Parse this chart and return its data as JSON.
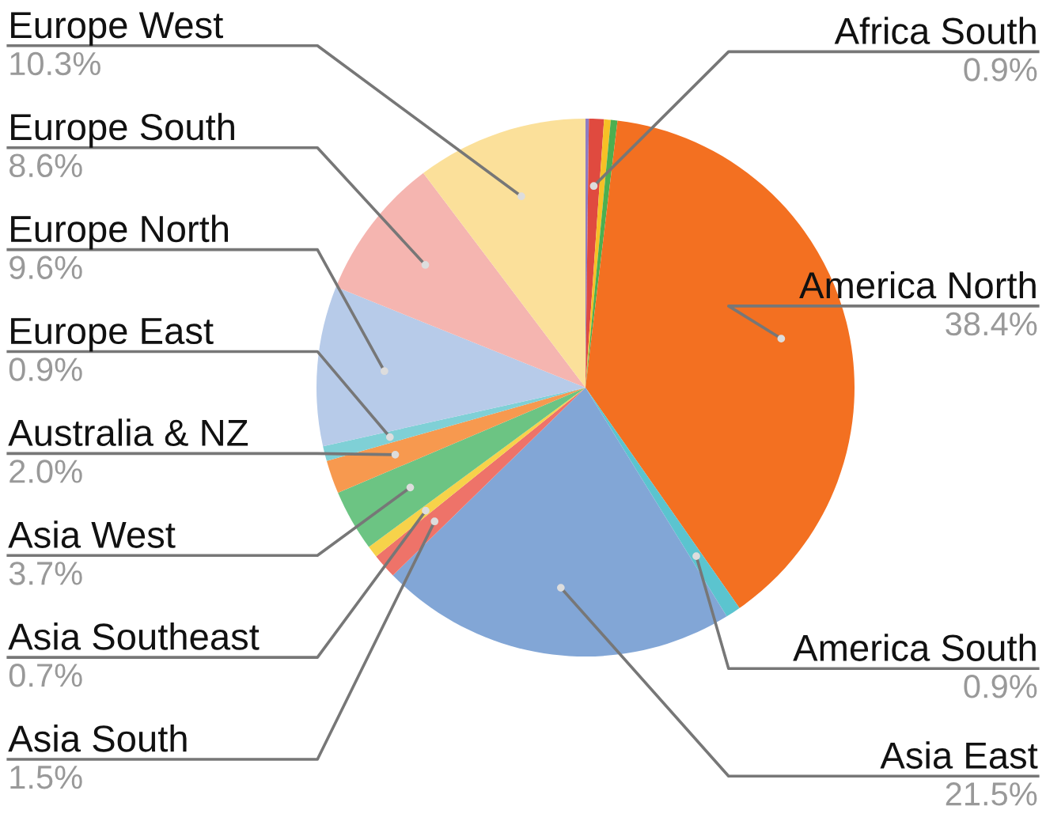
{
  "chart_data": {
    "type": "pie",
    "categories": [
      null,
      "Africa South",
      null,
      null,
      "America North",
      "America South",
      "Asia East",
      "Asia South",
      "Asia Southeast",
      "Asia West",
      "Australia & NZ",
      "Europe East",
      "Europe North",
      "Europe South",
      "Europe West"
    ],
    "values": [
      0.2,
      0.9,
      0.4,
      0.4,
      38.4,
      0.9,
      21.5,
      1.5,
      0.7,
      3.7,
      2.0,
      0.9,
      9.6,
      8.6,
      10.3
    ],
    "value_labels": [
      null,
      "0.9%",
      null,
      null,
      "38.4%",
      "0.9%",
      "21.5%",
      "1.5%",
      "0.7%",
      "3.7%",
      "2.0%",
      "0.9%",
      "9.6%",
      "8.6%",
      "10.3%"
    ],
    "colors": [
      "#8e7cc3",
      "#e04a3f",
      "#f6c026",
      "#4caf50",
      "#f37021",
      "#5bc4cf",
      "#82a6d6",
      "#ee7369",
      "#f7d24a",
      "#6cc483",
      "#f7994f",
      "#7fd0d6",
      "#b7cbe9",
      "#f5b5b0",
      "#fbe09a"
    ]
  }
}
